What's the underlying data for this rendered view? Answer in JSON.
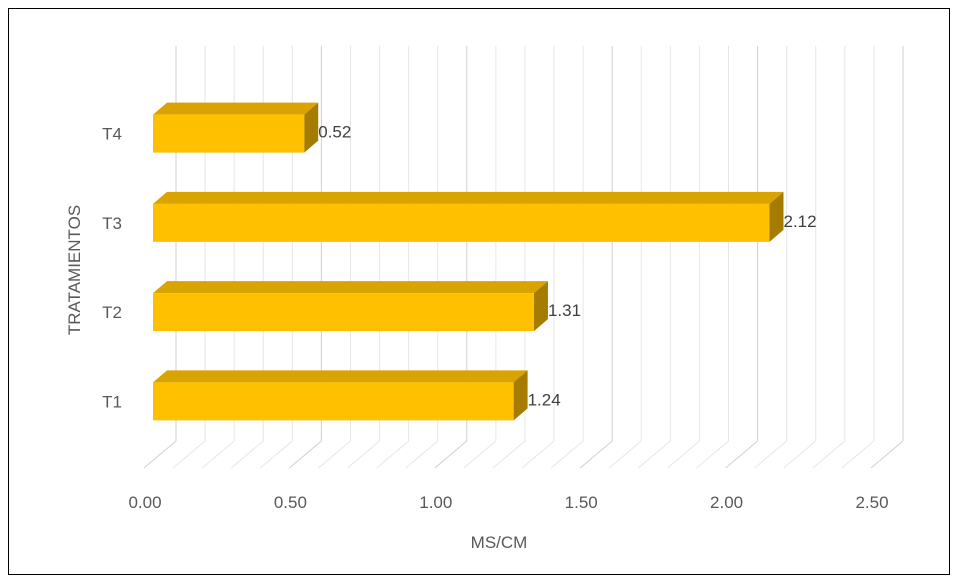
{
  "chart_data": {
    "type": "bar",
    "orientation": "horizontal",
    "style": "3d",
    "categories": [
      "T1",
      "T2",
      "T3",
      "T4"
    ],
    "values": [
      1.24,
      1.31,
      2.12,
      0.52
    ],
    "data_labels": [
      "1.24",
      "1.31",
      "2.12",
      "0.52"
    ],
    "x_ticks": [
      "0.00",
      "0.50",
      "1.00",
      "1.50",
      "2.00",
      "2.50"
    ],
    "xlim": [
      0,
      2.5
    ],
    "xlabel": "MS/CM",
    "ylabel": "TRATAMIENTOS",
    "grid": true,
    "legend": "none",
    "colors": {
      "bar_front": "#ffc000",
      "bar_top": "#d9a300",
      "bar_side": "#a67c00",
      "grid": "#d9d9d9"
    }
  }
}
